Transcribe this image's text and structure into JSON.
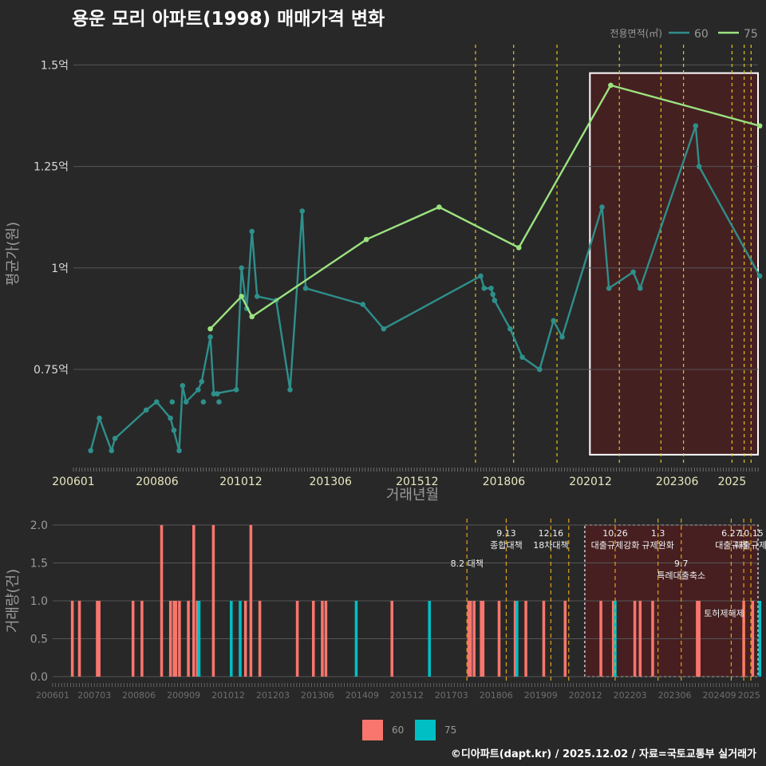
{
  "title": "용운 모리 아파트(1998) 매매가격 변화",
  "footer": "©디아파트(dapt.kr) / 2025.12.02 / 자료=국토교통부 실거래가",
  "colors": {
    "background": "#282828",
    "grid": "#555555",
    "series60": "#2F8F8B",
    "series75": "#9BE27F",
    "bar60": "#F8766D",
    "bar75": "#00BFC4",
    "policy": "#E3C21A",
    "highlight_fill": "#4A1E20"
  },
  "chart_data": [
    {
      "type": "line",
      "title": "용운 모리 아파트(1998) 매매가격 변화",
      "xlabel": "거래년월",
      "ylabel": "평균가(원)",
      "xlim": [
        2006.0,
        2025.75
      ],
      "ylim": [
        0.52,
        1.55
      ],
      "x_ticks": [
        {
          "value": 2006.0,
          "label": "200601"
        },
        {
          "value": 2008.4167,
          "label": "200806"
        },
        {
          "value": 2010.8333,
          "label": "201012"
        },
        {
          "value": 2013.4167,
          "label": "201306"
        },
        {
          "value": 2015.9167,
          "label": "201512"
        },
        {
          "value": 2018.4167,
          "label": "201806"
        },
        {
          "value": 2020.9167,
          "label": "202012"
        },
        {
          "value": 2023.4167,
          "label": "202306"
        },
        {
          "value": 2025.0,
          "label": "2025"
        }
      ],
      "y_ticks": [
        {
          "value": 0.75,
          "label": "0.75억"
        },
        {
          "value": 1.0,
          "label": "1억"
        },
        {
          "value": 1.25,
          "label": "1.25억"
        },
        {
          "value": 1.5,
          "label": "1.5억"
        }
      ],
      "legend_title": "전용면적(㎡)",
      "legend_position": "top-right",
      "series": [
        {
          "name": "60",
          "x": [
            2006.5,
            2006.75,
            2007.1,
            2007.2,
            2008.1,
            2008.4,
            2008.8,
            2009.05,
            2009.15,
            2009.25,
            2009.6,
            2009.7,
            2009.95,
            2010.05,
            2010.7,
            2010.85,
            2011.0,
            2011.15,
            2011.3,
            2011.85,
            2012.25,
            2012.6,
            2012.7,
            2014.35,
            2014.95,
            2017.75,
            2017.85,
            2018.05,
            2018.15,
            2018.6,
            2018.95,
            2019.45,
            2019.85,
            2020.1,
            2021.25,
            2021.45,
            2022.15,
            2022.35,
            2023.95,
            2024.05,
            2025.8
          ],
          "y": [
            0.55,
            0.63,
            0.55,
            0.58,
            0.65,
            0.67,
            0.63,
            0.55,
            0.71,
            0.67,
            0.7,
            0.72,
            0.83,
            0.69,
            0.7,
            1.0,
            0.9,
            1.09,
            0.93,
            0.92,
            0.7,
            1.14,
            0.95,
            0.91,
            0.85,
            0.98,
            0.95,
            0.95,
            0.92,
            0.85,
            0.78,
            0.75,
            0.87,
            0.83,
            1.15,
            0.95,
            0.99,
            0.95,
            1.35,
            1.25,
            0.98
          ],
          "extra_points": [
            {
              "x": 2008.9,
              "y": 0.6
            },
            {
              "x": 2008.85,
              "y": 0.67
            },
            {
              "x": 2009.75,
              "y": 0.67
            },
            {
              "x": 2010.15,
              "y": 0.69
            },
            {
              "x": 2010.2,
              "y": 0.67
            },
            {
              "x": 2018.1,
              "y": 0.935
            }
          ]
        },
        {
          "name": "75",
          "x": [
            2009.95,
            2010.85,
            2011.15,
            2014.45,
            2016.55,
            2018.85,
            2021.5,
            2025.8
          ],
          "y": [
            0.85,
            0.93,
            0.88,
            1.07,
            1.15,
            1.05,
            1.45,
            1.35
          ]
        }
      ],
      "policy_lines": [
        2017.6,
        2018.7,
        2019.95,
        2021.75,
        2022.95,
        2023.6,
        2025.0,
        2025.35,
        2025.55
      ],
      "highlight_box": {
        "x_from": 2020.9,
        "x_to": 2025.75,
        "y_from": 0.54,
        "y_to": 1.48
      }
    },
    {
      "type": "bar",
      "xlabel": "",
      "ylabel": "거래량(건)",
      "xlim": [
        2006.0,
        2025.75
      ],
      "ylim": [
        0,
        2.0
      ],
      "x_ticks": [
        {
          "value": 2006.0,
          "label": "200601"
        },
        {
          "value": 2007.1667,
          "label": "200703"
        },
        {
          "value": 2008.4167,
          "label": "200806"
        },
        {
          "value": 2009.6667,
          "label": "200909"
        },
        {
          "value": 2010.9167,
          "label": "201012"
        },
        {
          "value": 2012.1667,
          "label": "201203"
        },
        {
          "value": 2013.4167,
          "label": "201306"
        },
        {
          "value": 2014.6667,
          "label": "201409"
        },
        {
          "value": 2015.9167,
          "label": "201512"
        },
        {
          "value": 2017.1667,
          "label": "201703"
        },
        {
          "value": 2018.4167,
          "label": "201806"
        },
        {
          "value": 2019.6667,
          "label": "201909"
        },
        {
          "value": 2020.9167,
          "label": "202012"
        },
        {
          "value": 2022.1667,
          "label": "202203"
        },
        {
          "value": 2023.4167,
          "label": "202306"
        },
        {
          "value": 2024.6667,
          "label": "202409"
        },
        {
          "value": 2025.5,
          "label": "2025"
        }
      ],
      "y_ticks": [
        {
          "value": 0.0,
          "label": "0.0"
        },
        {
          "value": 0.5,
          "label": "0.5"
        },
        {
          "value": 1.0,
          "label": "1.0"
        },
        {
          "value": 1.5,
          "label": "1.5"
        },
        {
          "value": 2.0,
          "label": "2.0"
        }
      ],
      "series": [
        {
          "name": "60",
          "x": [
            2006.55,
            2006.75,
            2007.25,
            2007.3,
            2008.25,
            2008.5,
            2009.05,
            2009.3,
            2009.4,
            2009.45,
            2009.55,
            2009.8,
            2009.95,
            2010.05,
            2010.5,
            2011.4,
            2011.55,
            2011.8,
            2012.85,
            2013.3,
            2013.55,
            2013.65,
            2015.5,
            2017.65,
            2017.7,
            2017.8,
            2018.0,
            2018.05,
            2018.5,
            2018.95,
            2019.25,
            2019.75,
            2020.35,
            2021.35,
            2021.7,
            2022.3,
            2022.45,
            2022.8,
            2024.05,
            2024.1,
            2025.35,
            2025.6
          ],
          "values": [
            1,
            1,
            1,
            1,
            1,
            1,
            2,
            1,
            1,
            1,
            1,
            1,
            2,
            1,
            2,
            1,
            2,
            1,
            1,
            1,
            1,
            1,
            1,
            1,
            1,
            1,
            1,
            1,
            1,
            1,
            1,
            1,
            1,
            1,
            1,
            1,
            1,
            1,
            1,
            1,
            1,
            1
          ]
        },
        {
          "name": "75",
          "x": [
            2010.1,
            2011.0,
            2011.25,
            2014.5,
            2016.55,
            2019.0,
            2021.75,
            2025.8
          ],
          "values": [
            1,
            1,
            1,
            1,
            1,
            1,
            1,
            1
          ]
        }
      ],
      "policy_lines": [
        2017.6,
        2018.7,
        2019.95,
        2020.45,
        2021.75,
        2022.95,
        2023.6,
        2025.0,
        2025.35,
        2025.55
      ],
      "highlight_box": {
        "x_from": 2020.9,
        "x_to": 2025.75,
        "y_from": 0.0,
        "y_to": 2.0
      },
      "annotations": [
        {
          "x": 2017.6,
          "lines": [
            "8.2 대책"
          ],
          "level": 0.78
        },
        {
          "x": 2018.7,
          "lines": [
            "9.13",
            "종합대책"
          ],
          "level": 0.9
        },
        {
          "x": 2019.95,
          "lines": [
            "12.16",
            "18차대책"
          ],
          "level": 0.9
        },
        {
          "x": 2021.75,
          "lines": [
            "10.26",
            "대출규제강화"
          ],
          "level": 0.9
        },
        {
          "x": 2022.95,
          "lines": [
            "1.3",
            "규제완화"
          ],
          "level": 0.9
        },
        {
          "x": 2023.6,
          "lines": [
            "9.7",
            "특례대출축소"
          ],
          "level": 0.7
        },
        {
          "x": 2024.8,
          "lines": [
            "토허제해제"
          ],
          "level": 0.45
        },
        {
          "x": 2025.0,
          "lines": [
            "6.27",
            "대출규제"
          ],
          "level": 0.9
        },
        {
          "x": 2025.55,
          "lines": [
            "10.15",
            "대출규제"
          ],
          "level": 0.9
        }
      ],
      "legend": [
        {
          "name": "60"
        },
        {
          "name": "75"
        }
      ],
      "legend_position": "bottom"
    }
  ]
}
